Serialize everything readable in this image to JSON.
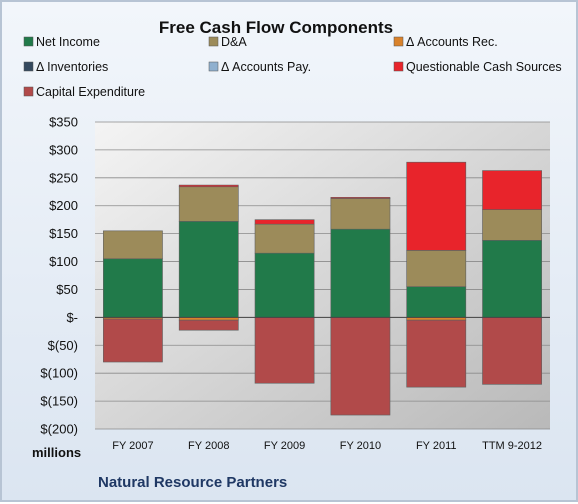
{
  "chart_data": {
    "type": "bar",
    "stacked": true,
    "title": "Free Cash Flow Components",
    "ylabel": "",
    "xlabel": "",
    "y_unit_label": "millions",
    "footer": "Natural Resource Partners",
    "ylim": [
      -200,
      350
    ],
    "ytick_values": [
      350,
      300,
      250,
      200,
      150,
      100,
      50,
      0,
      -50,
      -100,
      -150,
      -200
    ],
    "ytick_labels": [
      "$350",
      "$300",
      "$250",
      "$200",
      "$150",
      "$100",
      "$50",
      "$-",
      "$(50)",
      "$(100)",
      "$(150)",
      "$(200)"
    ],
    "categories": [
      "FY 2007",
      "FY 2008",
      "FY 2009",
      "FY 2010",
      "FY 2011",
      "TTM 9-2012"
    ],
    "legend_position": "top",
    "grid": true,
    "series": [
      {
        "name": "Net Income",
        "color": "#217a4a",
        "values": [
          105,
          172,
          115,
          158,
          55,
          138
        ]
      },
      {
        "name": "D&A",
        "color": "#9c8b5a",
        "values": [
          50,
          62,
          52,
          55,
          65,
          55
        ]
      },
      {
        "name": "Δ Accounts Rec.",
        "color": "#d9822b",
        "values": [
          -3,
          -5,
          0,
          0,
          -5,
          0
        ]
      },
      {
        "name": "Δ Inventories",
        "color": "#34495e",
        "values": [
          0,
          0,
          0,
          0,
          0,
          0
        ]
      },
      {
        "name": "Δ Accounts Pay.",
        "color": "#8fb0cf",
        "values": [
          0,
          0,
          0,
          0,
          0,
          0
        ]
      },
      {
        "name": "Questionable Cash Sources",
        "color": "#e8242b",
        "values": [
          0,
          3,
          8,
          2,
          158,
          70
        ]
      },
      {
        "name": "Capital Expenditure",
        "color": "#b14a4a",
        "values": [
          -77,
          -18,
          -118,
          -175,
          -120,
          -120
        ]
      }
    ]
  }
}
